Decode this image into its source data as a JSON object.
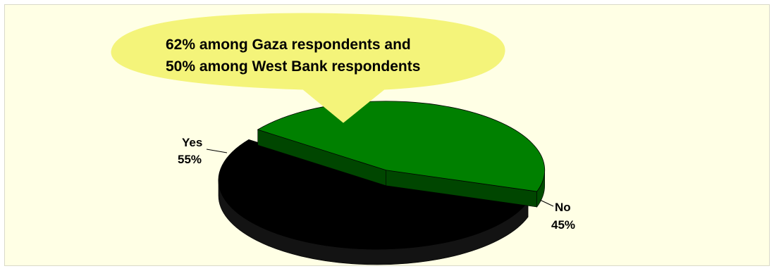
{
  "chart_data": {
    "type": "pie",
    "categories": [
      "Yes",
      "No"
    ],
    "values": [
      55,
      45
    ],
    "value_labels": [
      "55%",
      "45%"
    ],
    "colors": [
      "#000000",
      "#008000"
    ],
    "exploded": "No",
    "title": "",
    "annotation": {
      "line1": "62% among Gaza respondents and",
      "line2": "50% among West Bank respondents",
      "fill": "#f4f47a",
      "points_to": "Yes"
    }
  }
}
